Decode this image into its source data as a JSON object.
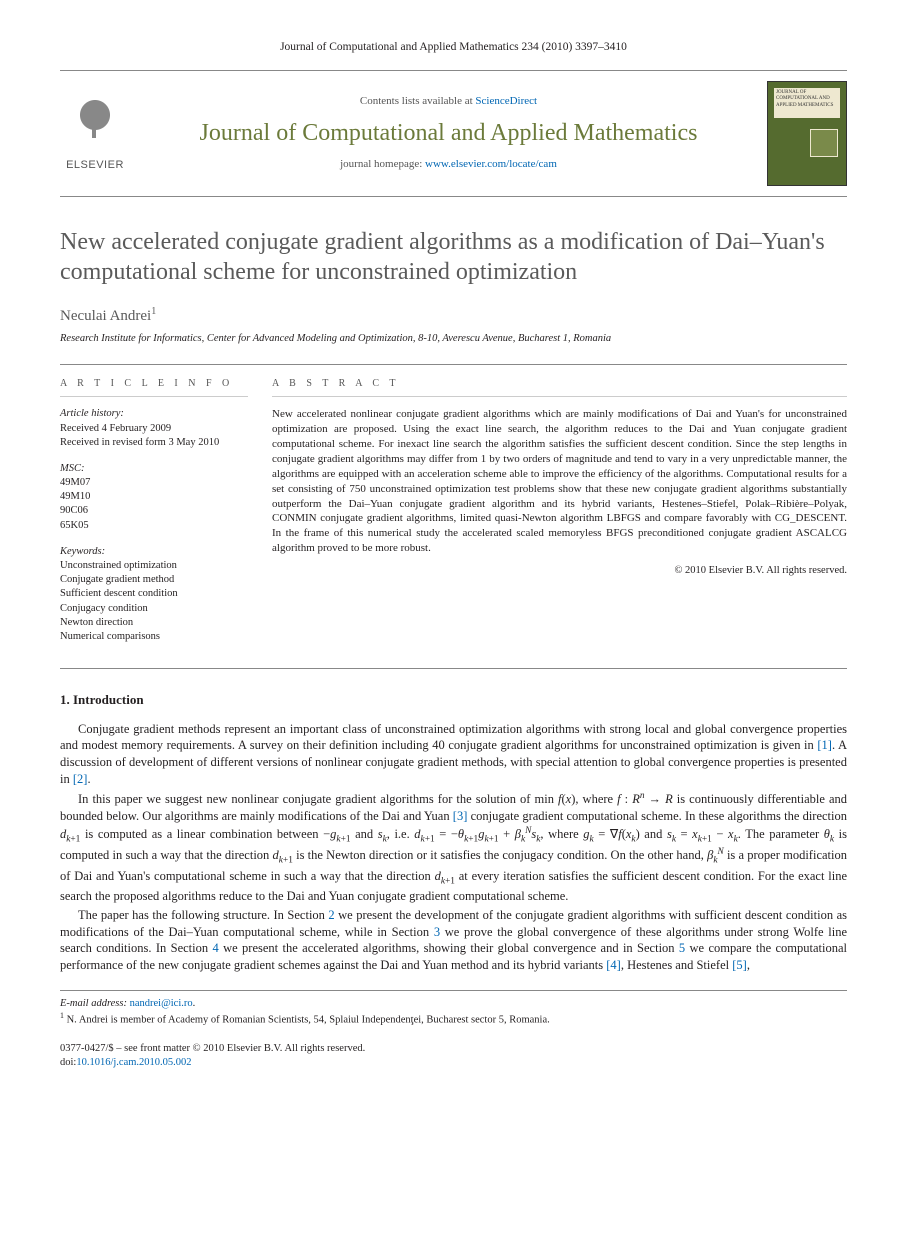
{
  "citation": "Journal of Computational and Applied Mathematics 234 (2010) 3397–3410",
  "header": {
    "contents_prefix": "Contents lists available at ",
    "contents_link": "ScienceDirect",
    "journal_name": "Journal of Computational and Applied Mathematics",
    "homepage_prefix": "journal homepage: ",
    "homepage_link": "www.elsevier.com/locate/cam",
    "elsevier": "ELSEVIER"
  },
  "title": "New accelerated conjugate gradient algorithms as a modification of Dai–Yuan's computational scheme for unconstrained optimization",
  "author": "Neculai Andrei",
  "author_sup": "1",
  "affiliation": "Research Institute for Informatics, Center for Advanced Modeling and Optimization, 8-10, Averescu Avenue, Bucharest 1, Romania",
  "info_label": "A R T I C L E   I N F O",
  "abstract_label": "A B S T R A C T",
  "history": {
    "head": "Article history:",
    "l1": "Received 4 February 2009",
    "l2": "Received in revised form 3 May 2010"
  },
  "msc": {
    "head": "MSC:",
    "items": [
      "49M07",
      "49M10",
      "90C06",
      "65K05"
    ]
  },
  "keywords": {
    "head": "Keywords:",
    "items": [
      "Unconstrained optimization",
      "Conjugate gradient method",
      "Sufficient descent condition",
      "Conjugacy condition",
      "Newton direction",
      "Numerical comparisons"
    ]
  },
  "abstract": "New accelerated nonlinear conjugate gradient algorithms which are mainly modifications of Dai and Yuan's for unconstrained optimization are proposed. Using the exact line search, the algorithm reduces to the Dai and Yuan conjugate gradient computational scheme. For inexact line search the algorithm satisfies the sufficient descent condition. Since the step lengths in conjugate gradient algorithms may differ from 1 by two orders of magnitude and tend to vary in a very unpredictable manner, the algorithms are equipped with an acceleration scheme able to improve the efficiency of the algorithms. Computational results for a set consisting of 750 unconstrained optimization test problems show that these new conjugate gradient algorithms substantially outperform the Dai–Yuan conjugate gradient algorithm and its hybrid variants, Hestenes–Stiefel, Polak–Ribière–Polyak, CONMIN conjugate gradient algorithms, limited quasi-Newton algorithm LBFGS and compare favorably with CG_DESCENT. In the frame of this numerical study the accelerated scaled memoryless BFGS preconditioned conjugate gradient ASCALCG algorithm proved to be more robust.",
  "copyright": "© 2010 Elsevier B.V. All rights reserved.",
  "intro_heading": "1. Introduction",
  "footnotes": {
    "email_label": "E-mail address:",
    "email": "nandrei@ici.ro",
    "email_suffix": ".",
    "n1": " N. Andrei is member of Academy of Romanian Scientists, 54, Splaiul Independenţei, Bucharest sector 5, Romania."
  },
  "footer": {
    "l1": "0377-0427/$ – see front matter © 2010 Elsevier B.V. All rights reserved.",
    "doi_prefix": "doi:",
    "doi": "10.1016/j.cam.2010.05.002"
  },
  "colors": {
    "link": "#0066b3",
    "journal_green": "#6b7a3a",
    "title_gray": "#5a5a5a",
    "text": "#231f20",
    "rule": "#888"
  }
}
